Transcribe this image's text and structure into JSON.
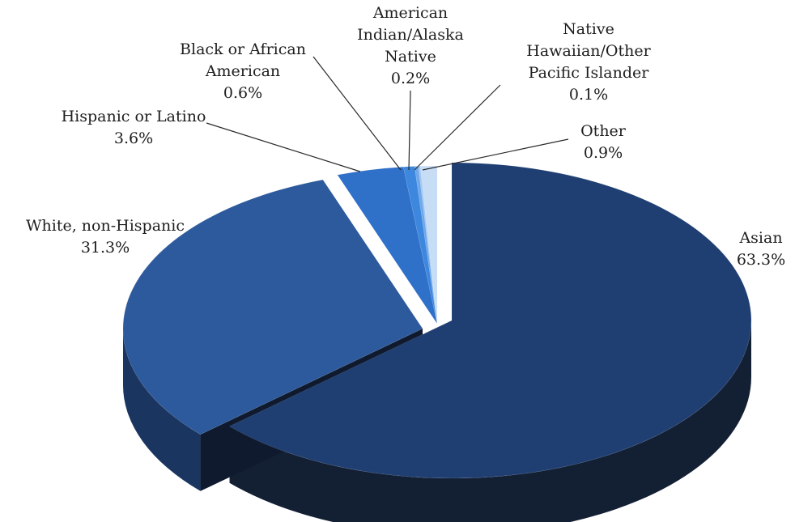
{
  "chart_data": {
    "type": "pie",
    "title": "",
    "slices": [
      {
        "name": "Asian",
        "value": 63.3,
        "value_label": "63.3%",
        "label_lines": [
          "Asian"
        ],
        "color": "#1f3f73",
        "side": "#131f33"
      },
      {
        "name": "White, non-Hispanic",
        "value": 31.3,
        "value_label": "31.3%",
        "label_lines": [
          "White, non-Hispanic"
        ],
        "color": "#2d5a9c",
        "side": "#1a3560"
      },
      {
        "name": "Hispanic or Latino",
        "value": 3.6,
        "value_label": "3.6%",
        "label_lines": [
          "Hispanic or Latino"
        ],
        "color": "#2f70c8",
        "side": "#1c4a88"
      },
      {
        "name": "Black or African American",
        "value": 0.6,
        "value_label": "0.6%",
        "label_lines": [
          "Black or African",
          "American"
        ],
        "color": "#3d88de",
        "side": "#25569a"
      },
      {
        "name": "American Indian/Alaska Native",
        "value": 0.2,
        "value_label": "0.2%",
        "label_lines": [
          "American",
          "Indian/Alaska",
          "Native"
        ],
        "color": "#6fa8ea",
        "side": "#3f72b0"
      },
      {
        "name": "Native Hawaiian/Other Pacific Islander",
        "value": 0.1,
        "value_label": "0.1%",
        "label_lines": [
          "Native",
          "Hawaiian/Other",
          "Pacific Islander"
        ],
        "color": "#9fc6f2",
        "side": "#6d9fd4"
      },
      {
        "name": "Other",
        "value": 0.9,
        "value_label": "0.9%",
        "label_lines": [
          "Other"
        ],
        "color": "#c7ddf6",
        "side": "#93b6dc"
      }
    ]
  }
}
